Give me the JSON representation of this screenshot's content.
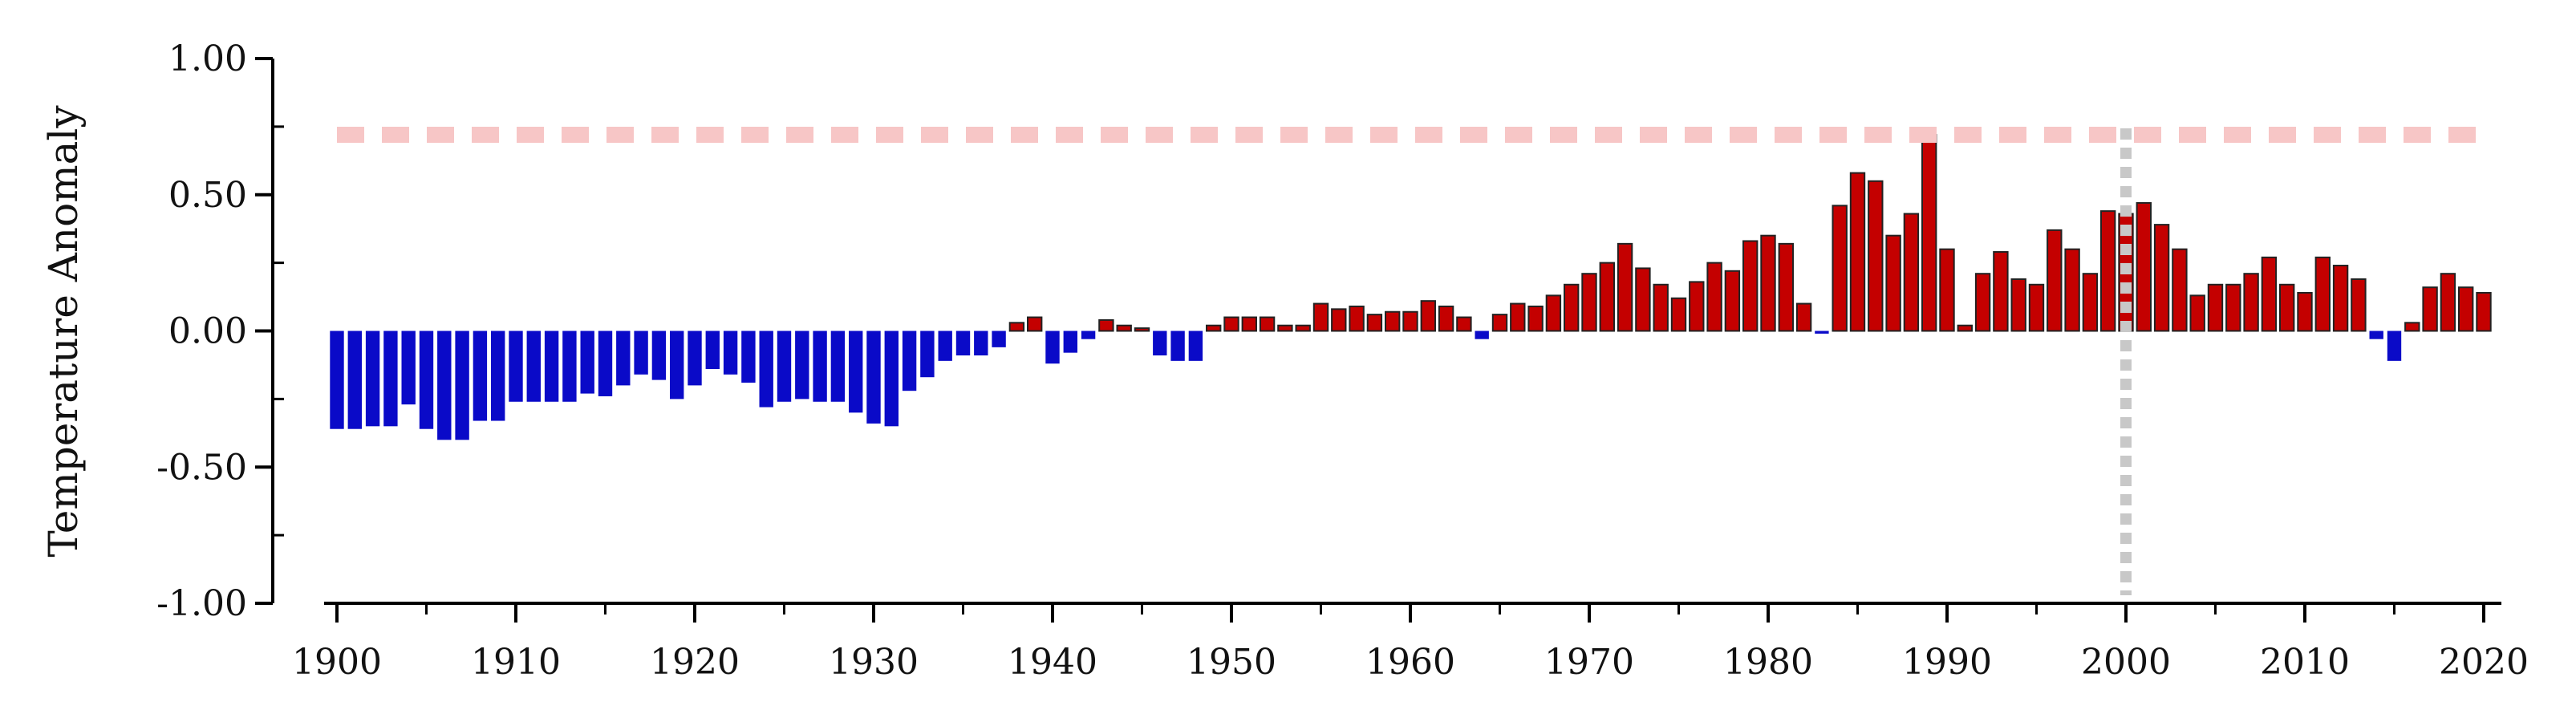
{
  "chart_data": {
    "type": "bar",
    "title": "",
    "xlabel": "",
    "ylabel": "Temperature Anomaly",
    "xlim": [
      1899,
      2021
    ],
    "ylim": [
      -1.0,
      1.0
    ],
    "x_ticks": [
      "1900",
      "1910",
      "1920",
      "1930",
      "1940",
      "1950",
      "1960",
      "1970",
      "1980",
      "1990",
      "2000",
      "2010",
      "2020"
    ],
    "y_ticks": [
      "1.00",
      "0.50",
      "0.00",
      "-0.50",
      "-1.00"
    ],
    "reference_line": {
      "value": 0.72,
      "color": "#f7c6c6",
      "style": "dashed"
    },
    "highlight_year": {
      "x": 2000,
      "color": "#c8c8c8",
      "style": "dotted"
    },
    "positive_color": "#c40000",
    "negative_color": "#0a0ac8",
    "grid": false,
    "legend": "none",
    "years_start": 1900,
    "years_end": 2020,
    "values": [
      -0.36,
      -0.36,
      -0.35,
      -0.35,
      -0.27,
      -0.36,
      -0.4,
      -0.4,
      -0.33,
      -0.33,
      -0.26,
      -0.26,
      -0.26,
      -0.26,
      -0.23,
      -0.24,
      -0.2,
      -0.16,
      -0.18,
      -0.25,
      -0.2,
      -0.14,
      -0.16,
      -0.19,
      -0.28,
      -0.26,
      -0.25,
      -0.26,
      -0.26,
      -0.3,
      -0.34,
      -0.35,
      -0.22,
      -0.17,
      -0.11,
      -0.09,
      -0.09,
      -0.06,
      0.03,
      0.05,
      -0.12,
      -0.08,
      -0.03,
      0.04,
      0.02,
      0.01,
      -0.09,
      -0.11,
      -0.11,
      0.02,
      0.05,
      0.05,
      0.05,
      0.02,
      0.02,
      0.1,
      0.08,
      0.09,
      0.06,
      0.07,
      0.07,
      0.11,
      0.09,
      0.05,
      -0.03,
      0.06,
      0.1,
      0.09,
      0.13,
      0.17,
      0.21,
      0.25,
      0.32,
      0.23,
      0.17,
      0.12,
      0.18,
      0.25,
      0.22,
      0.33,
      0.35,
      0.32,
      0.1,
      -0.01,
      0.46,
      0.58,
      0.55,
      0.35,
      0.43,
      0.72,
      0.3,
      0.02,
      0.21,
      0.29,
      0.19,
      0.17,
      0.37,
      0.3,
      0.21,
      0.44,
      0.43,
      0.47,
      0.39,
      0.3,
      0.13,
      0.17,
      0.17,
      0.21,
      0.27,
      0.17,
      0.14,
      0.27,
      0.24,
      0.19,
      -0.03,
      -0.11,
      0.03,
      0.16,
      0.21,
      0.16,
      0.14
    ]
  }
}
